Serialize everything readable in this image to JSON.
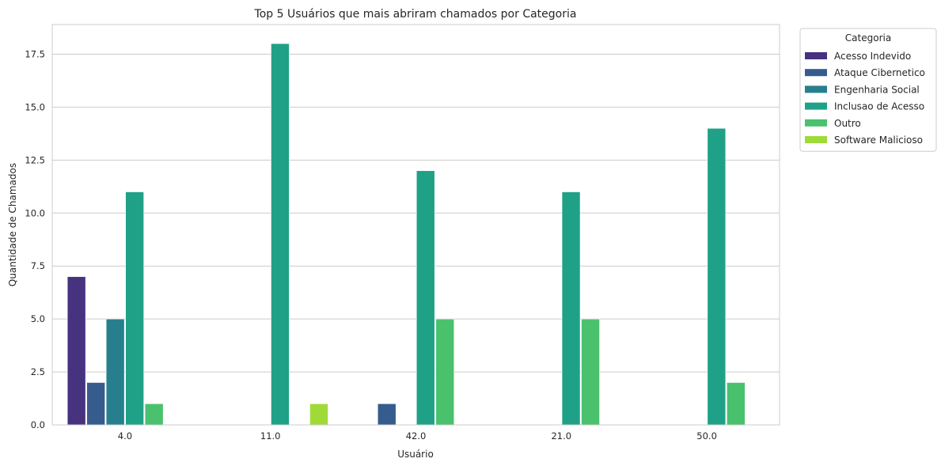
{
  "chart_data": {
    "type": "bar",
    "title": "Top 5 Usuários que mais abriram chamados por Categoria",
    "xlabel": "Usuário",
    "ylabel": "Quantidade de Chamados",
    "ylim": [
      0,
      18.9
    ],
    "yticks": [
      "0.0",
      "2.5",
      "5.0",
      "7.5",
      "10.0",
      "12.5",
      "15.0",
      "17.5"
    ],
    "ytick_values": [
      0,
      2.5,
      5,
      7.5,
      10,
      12.5,
      15,
      17.5
    ],
    "grid": true,
    "legend": {
      "title": "Categoria",
      "placement": "outside-top-right"
    },
    "categories": [
      "4.0",
      "11.0",
      "42.0",
      "21.0",
      "50.0"
    ],
    "series": [
      {
        "name": "Acesso Indevido",
        "color": "#46327e",
        "values": [
          7,
          0,
          0,
          0,
          0
        ]
      },
      {
        "name": "Ataque Cibernetico",
        "color": "#365c8d",
        "values": [
          2,
          0,
          1,
          0,
          0
        ]
      },
      {
        "name": "Engenharia Social",
        "color": "#277f8e",
        "values": [
          5,
          0,
          0,
          0,
          0
        ]
      },
      {
        "name": "Inclusao de Acesso",
        "color": "#1fa187",
        "values": [
          11,
          18,
          12,
          11,
          14
        ]
      },
      {
        "name": "Outro",
        "color": "#4ac16d",
        "values": [
          1,
          0,
          5,
          5,
          2
        ]
      },
      {
        "name": "Software Malicioso",
        "color": "#a0da39",
        "values": [
          0,
          1,
          0,
          0,
          0
        ]
      }
    ]
  }
}
